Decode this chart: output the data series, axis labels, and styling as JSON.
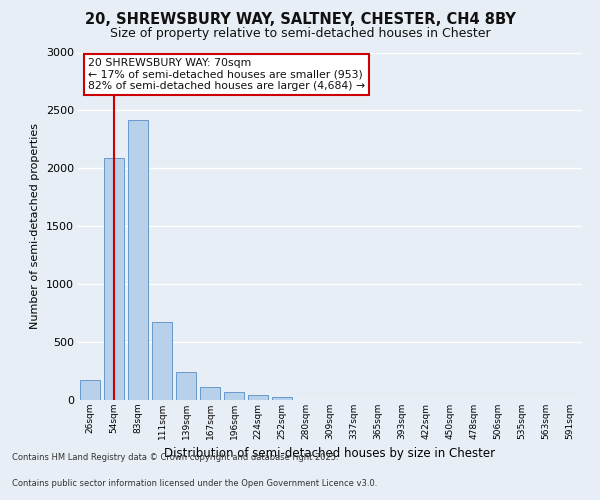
{
  "title_line1": "20, SHREWSBURY WAY, SALTNEY, CHESTER, CH4 8BY",
  "title_line2": "Size of property relative to semi-detached houses in Chester",
  "xlabel": "Distribution of semi-detached houses by size in Chester",
  "ylabel": "Number of semi-detached properties",
  "categories": [
    "26sqm",
    "54sqm",
    "83sqm",
    "111sqm",
    "139sqm",
    "167sqm",
    "196sqm",
    "224sqm",
    "252sqm",
    "280sqm",
    "309sqm",
    "337sqm",
    "365sqm",
    "393sqm",
    "422sqm",
    "450sqm",
    "478sqm",
    "506sqm",
    "535sqm",
    "563sqm",
    "591sqm"
  ],
  "values": [
    170,
    2090,
    2420,
    670,
    240,
    110,
    70,
    40,
    30,
    0,
    0,
    0,
    0,
    0,
    0,
    0,
    0,
    0,
    0,
    0,
    0
  ],
  "bar_color": "#b8d0ea",
  "bar_edge_color": "#6699cc",
  "vline_x": 1.0,
  "vline_color": "#cc0000",
  "annotation_title": "20 SHREWSBURY WAY: 70sqm",
  "annotation_line2": "← 17% of semi-detached houses are smaller (953)",
  "annotation_line3": "82% of semi-detached houses are larger (4,684) →",
  "annotation_box_color": "#cc0000",
  "annotation_box_fill": "#ffffff",
  "ylim": [
    0,
    3000
  ],
  "yticks": [
    0,
    500,
    1000,
    1500,
    2000,
    2500,
    3000
  ],
  "footnote1": "Contains HM Land Registry data © Crown copyright and database right 2025.",
  "footnote2": "Contains public sector information licensed under the Open Government Licence v3.0.",
  "bg_color": "#e8eef5",
  "plot_bg_color": "#e8eef5",
  "grid_color": "#ffffff"
}
